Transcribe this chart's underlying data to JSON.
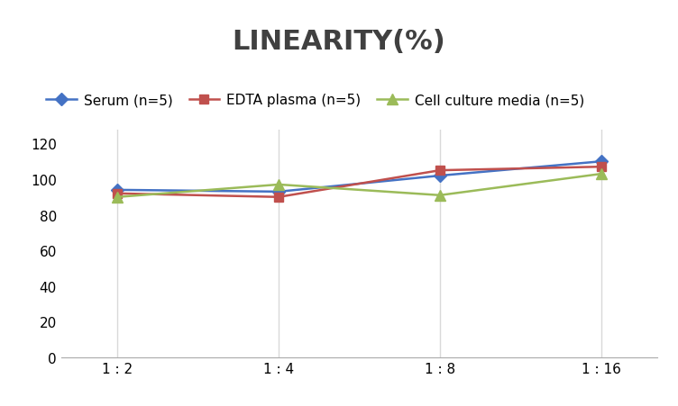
{
  "title": "LINEARITY(%)",
  "x_labels": [
    "1 : 2",
    "1 : 4",
    "1 : 8",
    "1 : 16"
  ],
  "x_positions": [
    0,
    1,
    2,
    3
  ],
  "series": [
    {
      "label": "Serum (n=5)",
      "values": [
        94,
        93,
        102,
        110
      ],
      "color": "#4472C4",
      "marker": "D",
      "marker_size": 7,
      "linewidth": 1.8
    },
    {
      "label": "EDTA plasma (n=5)",
      "values": [
        92,
        90,
        105,
        107
      ],
      "color": "#C0504D",
      "marker": "s",
      "marker_size": 7,
      "linewidth": 1.8
    },
    {
      "label": "Cell culture media (n=5)",
      "values": [
        90,
        97,
        91,
        103
      ],
      "color": "#9BBB59",
      "marker": "^",
      "marker_size": 8,
      "linewidth": 1.8
    }
  ],
  "ylim": [
    0,
    128
  ],
  "yticks": [
    0,
    20,
    40,
    60,
    80,
    100,
    120
  ],
  "grid_color": "#D9D9D9",
  "background_color": "#FFFFFF",
  "title_fontsize": 22,
  "title_color": "#404040",
  "legend_fontsize": 11,
  "tick_fontsize": 11
}
